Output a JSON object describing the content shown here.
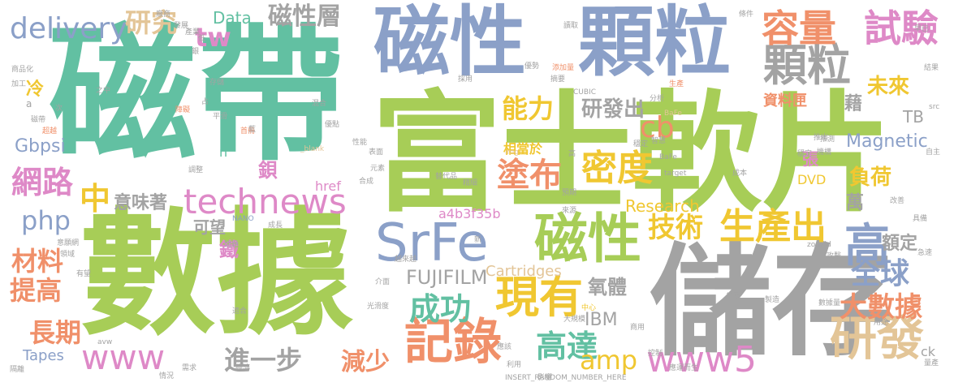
{
  "words": [
    {
      "key": "w0",
      "text": "磁帶"
    },
    {
      "key": "w1",
      "text": "富士軟片"
    },
    {
      "key": "w2",
      "text": "數據"
    },
    {
      "key": "w3",
      "text": "磁性"
    },
    {
      "key": "w4",
      "text": "顆粒"
    },
    {
      "key": "w5",
      "text": "儲存"
    },
    {
      "key": "w6",
      "text": "SrFe"
    },
    {
      "key": "w7",
      "text": "磁性"
    },
    {
      "key": "w8",
      "text": "technews"
    },
    {
      "key": "w9",
      "text": "現有"
    },
    {
      "key": "w10",
      "text": "記錄"
    },
    {
      "key": "w11",
      "text": "研發"
    },
    {
      "key": "w12",
      "text": "顆粒"
    },
    {
      "key": "w13",
      "text": "容量"
    },
    {
      "key": "w14",
      "text": "試驗"
    },
    {
      "key": "w15",
      "text": "生產出"
    },
    {
      "key": "w16",
      "text": "高"
    },
    {
      "key": "w17",
      "text": "www5"
    },
    {
      "key": "w18",
      "text": "www"
    },
    {
      "key": "w19",
      "text": "成功"
    },
    {
      "key": "w20",
      "text": "高達"
    },
    {
      "key": "w21",
      "text": "密度"
    },
    {
      "key": "w22",
      "text": "全球"
    },
    {
      "key": "w23",
      "text": "delivery"
    },
    {
      "key": "w24",
      "text": "磁性層"
    },
    {
      "key": "w25",
      "text": "研究"
    },
    {
      "key": "w26",
      "text": "tw"
    },
    {
      "key": "w27",
      "text": "Data"
    },
    {
      "key": "w28",
      "text": "能力"
    },
    {
      "key": "w29",
      "text": "塗布"
    },
    {
      "key": "w30",
      "text": "cb"
    },
    {
      "key": "w31",
      "text": "研發出"
    },
    {
      "key": "w32",
      "text": "技術"
    },
    {
      "key": "w33",
      "text": "大數據"
    },
    {
      "key": "w34",
      "text": "amp"
    },
    {
      "key": "w35",
      "text": "進一步"
    },
    {
      "key": "w36",
      "text": "減少"
    },
    {
      "key": "w37",
      "text": "網路"
    },
    {
      "key": "w38",
      "text": "中"
    },
    {
      "key": "w39",
      "text": "意味著"
    },
    {
      "key": "w40",
      "text": "php"
    },
    {
      "key": "w41",
      "text": "材料"
    },
    {
      "key": "w42",
      "text": "提高"
    },
    {
      "key": "w43",
      "text": "長期"
    },
    {
      "key": "w44",
      "text": "未來"
    },
    {
      "key": "w45",
      "text": "資料匣"
    },
    {
      "key": "w46",
      "text": "藉"
    },
    {
      "key": "w47",
      "text": "TB"
    },
    {
      "key": "w48",
      "text": "Magnetic"
    },
    {
      "key": "w49",
      "text": "張"
    },
    {
      "key": "w50",
      "text": "負荷"
    },
    {
      "key": "w51",
      "text": "萬"
    },
    {
      "key": "w52",
      "text": "額定"
    },
    {
      "key": "w53",
      "text": "DVD"
    },
    {
      "key": "w54",
      "text": "Research"
    },
    {
      "key": "w55",
      "text": "FUJIFILM"
    },
    {
      "key": "w56",
      "text": "氧體"
    },
    {
      "key": "w57",
      "text": "IBM"
    },
    {
      "key": "w58",
      "text": "Cartridges"
    },
    {
      "key": "w59",
      "text": "a4b3f35b"
    },
    {
      "key": "w60",
      "text": "相當於"
    },
    {
      "key": "w61",
      "text": "Gbpsi"
    },
    {
      "key": "w62",
      "text": "冷"
    },
    {
      "key": "w63",
      "text": "鐵"
    },
    {
      "key": "w64",
      "text": "鋇"
    },
    {
      "key": "w65",
      "text": "可望"
    },
    {
      "key": "w66",
      "text": "href"
    },
    {
      "key": "w67",
      "text": "Tapes"
    },
    {
      "key": "w68",
      "text": "n"
    },
    {
      "key": "w69",
      "text": "ck"
    },
    {
      "key": "w70",
      "text": "INSERT_RANDOM_NUMBER_HERE"
    },
    {
      "key": "w71",
      "text": "img"
    },
    {
      "key": "w72",
      "text": "_blank"
    },
    {
      "key": "w73",
      "text": "target"
    },
    {
      "key": "w74",
      "text": "zoneid"
    },
    {
      "key": "w75",
      "text": "NANO"
    },
    {
      "key": "w76",
      "text": "BaFe"
    },
    {
      "key": "w77",
      "text": "BaFe"
    },
    {
      "key": "w78",
      "text": "CUBIC"
    },
    {
      "key": "w79",
      "text": "src"
    },
    {
      "key": "w80",
      "text": "avw"
    },
    {
      "key": "w81",
      "text": "a"
    },
    {
      "key": "w82",
      "text": "商品化"
    },
    {
      "key": "w83",
      "text": "加工"
    },
    {
      "key": "w84",
      "text": "磁帶"
    },
    {
      "key": "w85",
      "text": "次"
    },
    {
      "key": "w86",
      "text": "超越"
    },
    {
      "key": "w87",
      "text": "之中"
    },
    {
      "key": "w88",
      "text": "存儲"
    },
    {
      "key": "w89",
      "text": "平滑"
    },
    {
      "key": "w90",
      "text": "占"
    },
    {
      "key": "w91",
      "text": "優點"
    },
    {
      "key": "w92",
      "text": "混合"
    },
    {
      "key": "w93",
      "text": "性能"
    },
    {
      "key": "w94",
      "text": "元素"
    },
    {
      "key": "w95",
      "text": "表面"
    },
    {
      "key": "w96",
      "text": "替代品"
    },
    {
      "key": "w97",
      "text": "精細"
    },
    {
      "key": "w98",
      "text": "穩定"
    },
    {
      "key": "w99",
      "text": "智慧"
    },
    {
      "key": "w100",
      "text": "推出"
    },
    {
      "key": "w101",
      "text": "穩定"
    },
    {
      "key": "w102",
      "text": "高"
    },
    {
      "key": "w103",
      "text": "採用"
    },
    {
      "key": "w104",
      "text": "分析"
    },
    {
      "key": "w105",
      "text": "摘要"
    },
    {
      "key": "w106",
      "text": "預期"
    },
    {
      "key": "w107",
      "text": "成本"
    },
    {
      "key": "w108",
      "text": "機構"
    },
    {
      "key": "w109",
      "text": "改善"
    },
    {
      "key": "w110",
      "text": "自主"
    },
    {
      "key": "w111",
      "text": "生產"
    },
    {
      "key": "w112",
      "text": "推測"
    },
    {
      "key": "w113",
      "text": "領域"
    },
    {
      "key": "w114",
      "text": "意願網"
    },
    {
      "key": "w115",
      "text": "有望"
    },
    {
      "key": "w116",
      "text": "成長"
    },
    {
      "key": "w117",
      "text": "問題"
    },
    {
      "key": "w118",
      "text": "適合"
    },
    {
      "key": "w119",
      "text": "光滑度"
    },
    {
      "key": "w120",
      "text": "越來越"
    },
    {
      "key": "w121",
      "text": "來源"
    },
    {
      "key": "w122",
      "text": "中心"
    },
    {
      "key": "w123",
      "text": "大規模"
    },
    {
      "key": "w124",
      "text": "普及"
    },
    {
      "key": "w125",
      "text": "製造"
    },
    {
      "key": "w126",
      "text": "數據量"
    },
    {
      "key": "w127",
      "text": "攻擊"
    },
    {
      "key": "w128",
      "text": "合成"
    },
    {
      "key": "w129",
      "text": "需求"
    },
    {
      "key": "w130",
      "text": "經濟"
    },
    {
      "key": "w131",
      "text": "情況"
    },
    {
      "key": "w132",
      "text": "隔離"
    },
    {
      "key": "w133",
      "text": "利用"
    },
    {
      "key": "w134",
      "text": "商用"
    },
    {
      "key": "w135",
      "text": "控制"
    },
    {
      "key": "w136",
      "text": "應運而生"
    },
    {
      "key": "w137",
      "text": "量產"
    },
    {
      "key": "w138",
      "text": "讀取"
    },
    {
      "key": "w139",
      "text": "條件"
    },
    {
      "key": "w140",
      "text": "早已"
    },
    {
      "key": "w141",
      "text": "添加量"
    },
    {
      "key": "w142",
      "text": "結果"
    },
    {
      "key": "w143",
      "text": "首冊"
    },
    {
      "key": "w144",
      "text": "障礙"
    },
    {
      "key": "w145",
      "text": "調整"
    },
    {
      "key": "w146",
      "text": "介面"
    },
    {
      "key": "w147",
      "text": "優勢"
    },
    {
      "key": "w148",
      "text": "具備"
    },
    {
      "key": "w149",
      "text": "產業"
    },
    {
      "key": "w150",
      "text": "低"
    },
    {
      "key": "w151",
      "text": "急速"
    },
    {
      "key": "w152",
      "text": "銀"
    },
    {
      "key": "w153",
      "text": "藍"
    },
    {
      "key": "w154",
      "text": "廠商"
    },
    {
      "key": "w155",
      "text": "發展"
    },
    {
      "key": "w156",
      "text": "新"
    },
    {
      "key": "w157",
      "text": "應該"
    },
    {
      "key": "w158",
      "text": "影響"
    },
    {
      "key": "w159",
      "text": "用途"
    }
  ]
}
